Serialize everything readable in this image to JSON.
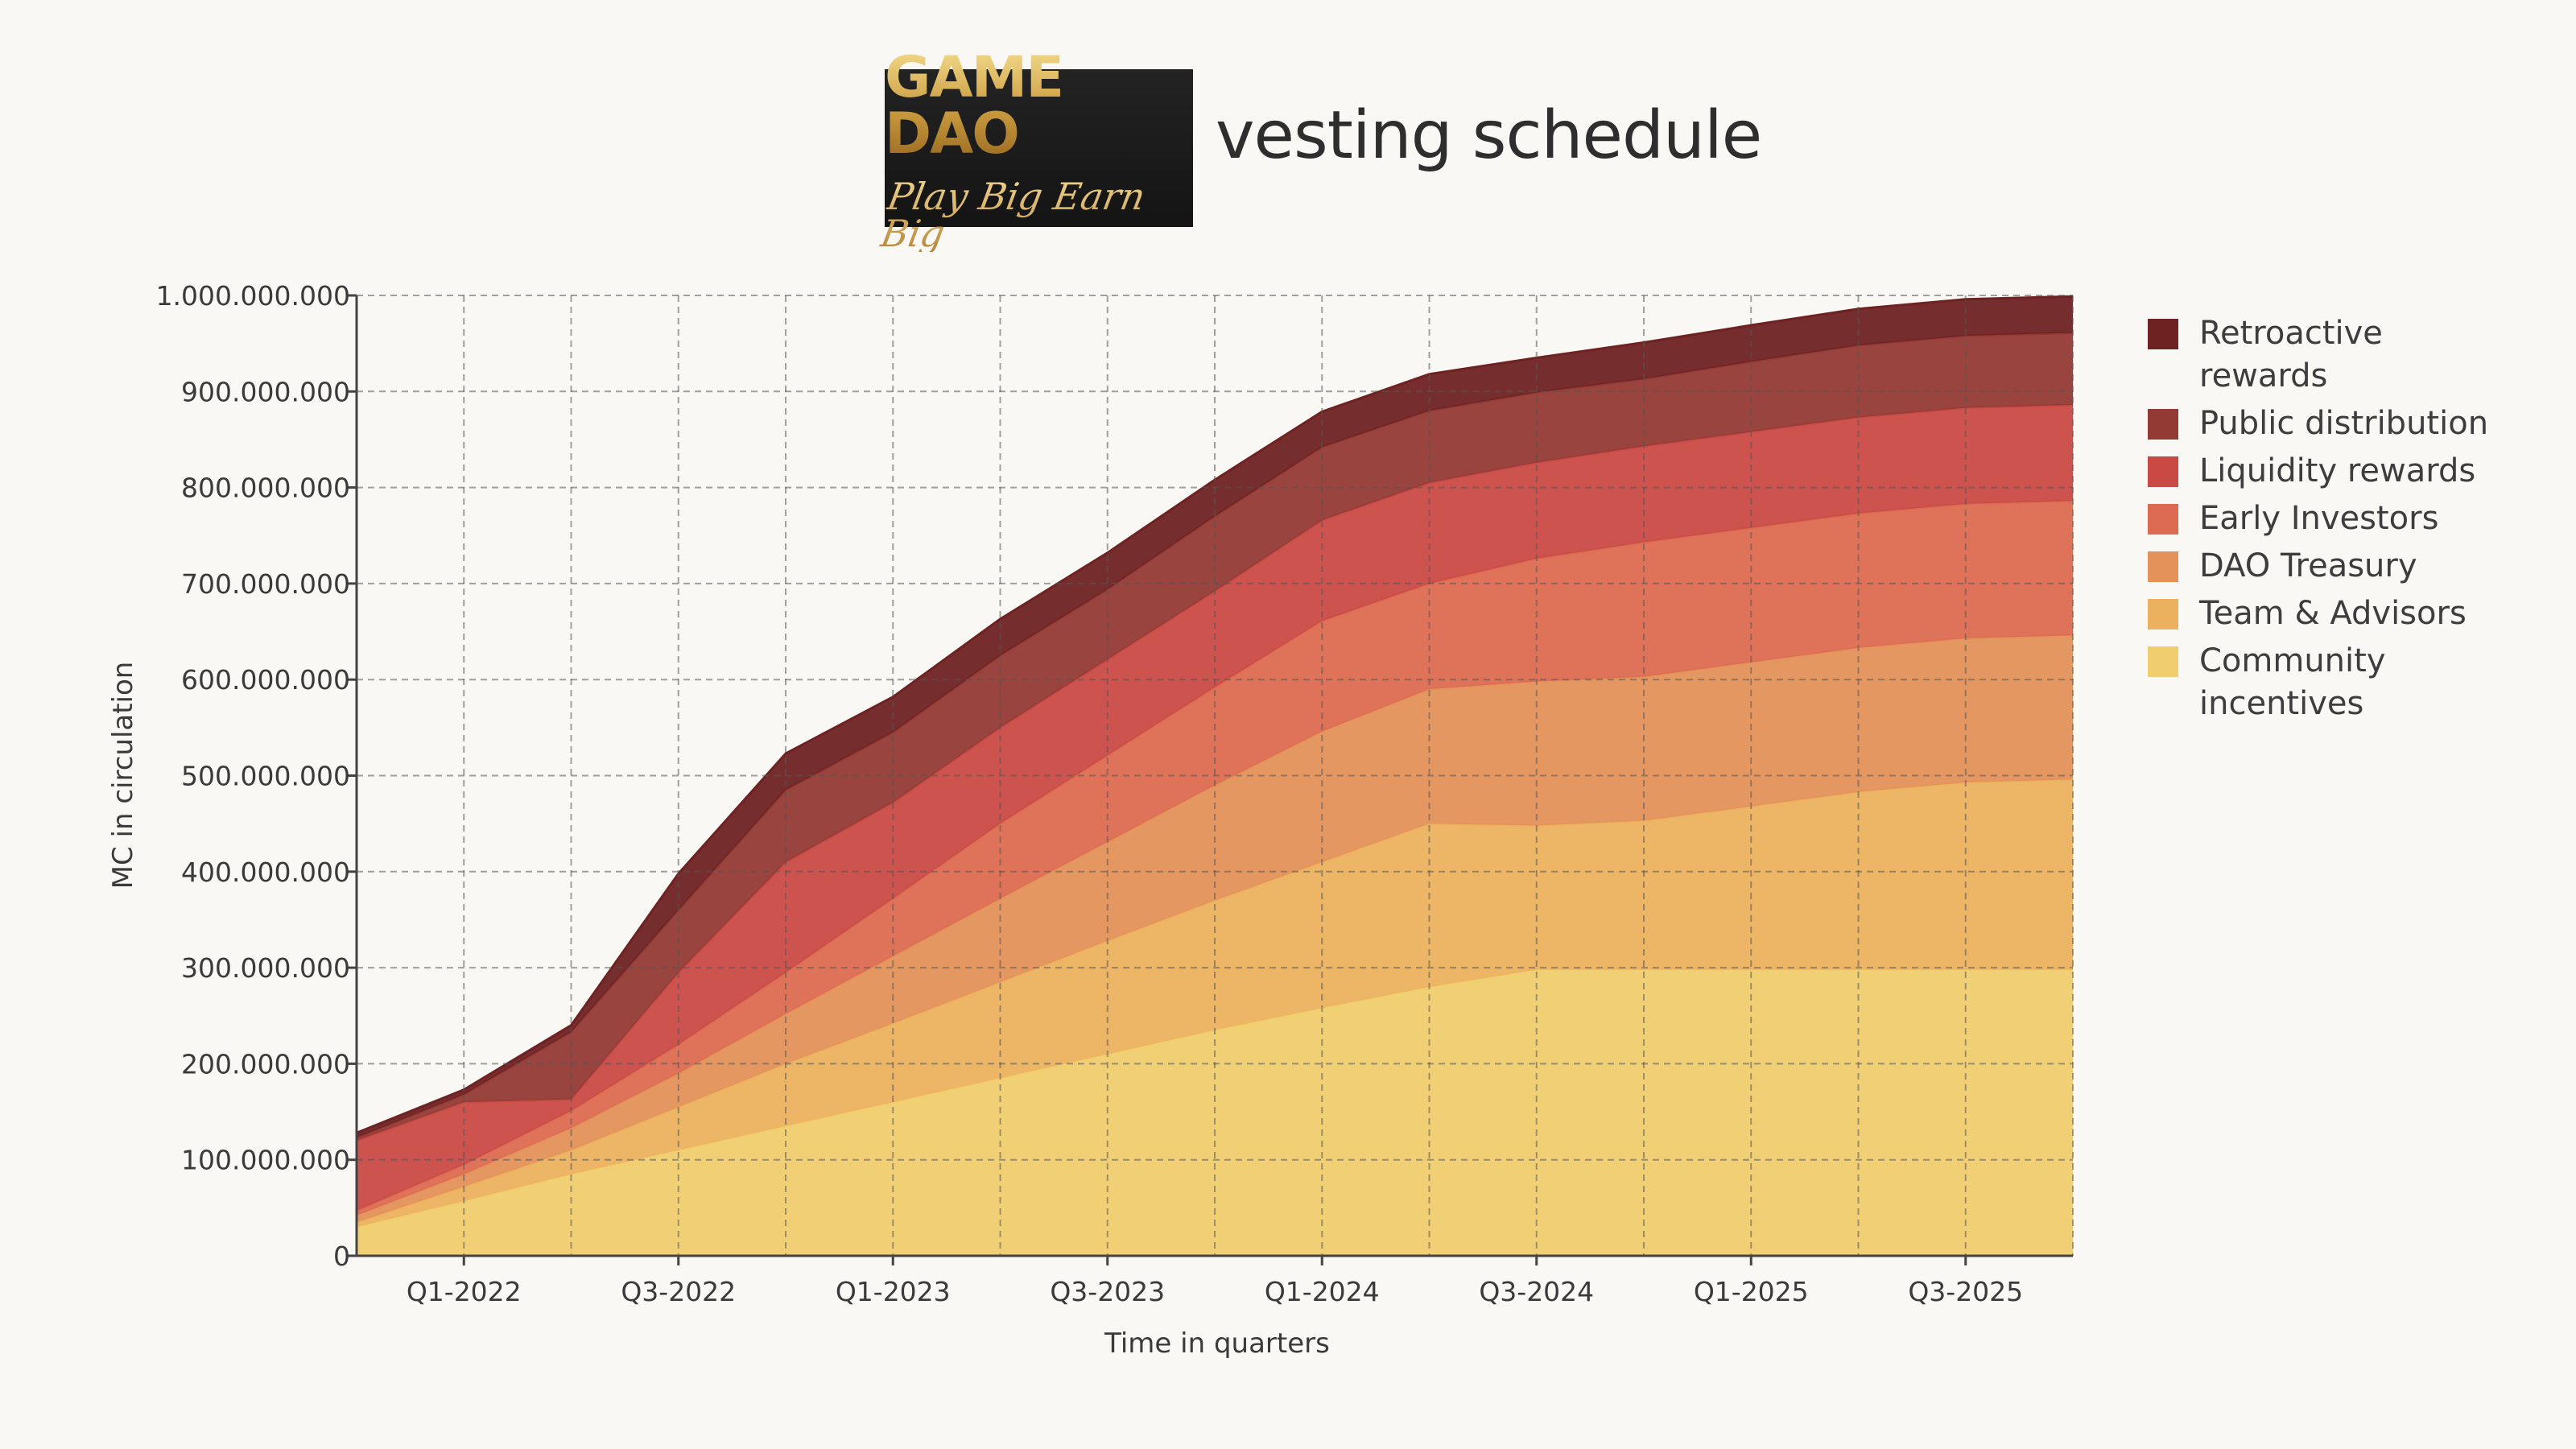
{
  "header": {
    "logo_text": "GAME DAO",
    "logo_tagline": "Play Big Earn Big",
    "title": "vesting schedule"
  },
  "chart_data": {
    "type": "area",
    "stacked": true,
    "title": "vesting schedule",
    "xlabel": "Time in quarters",
    "ylabel": "MC in circulation",
    "ylim": [
      0,
      1000000000
    ],
    "yticks": [
      "0",
      "100.000.000",
      "200.000.000",
      "300.000.000",
      "400.000.000",
      "500.000.000",
      "600.000.000",
      "700.000.000",
      "800.000.000",
      "900.000.000",
      "1.000.000.000"
    ],
    "x": [
      "Q4-2021",
      "Q1-2022",
      "Q2-2022",
      "Q3-2022",
      "Q4-2022",
      "Q1-2023",
      "Q2-2023",
      "Q3-2023",
      "Q4-2023",
      "Q1-2024",
      "Q2-2024",
      "Q3-2024",
      "Q4-2024",
      "Q1-2025",
      "Q2-2025",
      "Q3-2025",
      "Q4-2025"
    ],
    "xtick_labels": [
      "Q1-2022",
      "Q3-2022",
      "Q1-2023",
      "Q3-2023",
      "Q1-2024",
      "Q3-2024",
      "Q1-2025",
      "Q3-2025"
    ],
    "grid": true,
    "legend_position": "right",
    "series": [
      {
        "name": "Community incentives",
        "color": "#f0cd6e",
        "values": [
          30,
          57,
          85,
          110,
          135,
          160,
          185,
          210,
          235,
          258,
          280,
          298,
          298,
          298,
          298,
          298,
          298
        ]
      },
      {
        "name": "Team & Advisors",
        "color": "#ecb15e",
        "values": [
          5,
          15,
          25,
          45,
          65,
          82,
          100,
          118,
          135,
          152,
          170,
          150,
          155,
          170,
          185,
          195,
          198
        ]
      },
      {
        "name": "DAO Treasury",
        "color": "#e4915a",
        "values": [
          7,
          13,
          23,
          35,
          52,
          70,
          87,
          103,
          120,
          136,
          140,
          150,
          150,
          150,
          150,
          150,
          150
        ]
      },
      {
        "name": "Early Investors",
        "color": "#dc6b51",
        "values": [
          5,
          10,
          18,
          30,
          43,
          60,
          78,
          90,
          102,
          115,
          110,
          128,
          140,
          140,
          140,
          140,
          140
        ]
      },
      {
        "name": "Liquidity rewards",
        "color": "#c94a44",
        "values": [
          73,
          65,
          12,
          75,
          115,
          100,
          100,
          100,
          100,
          105,
          105,
          100,
          100,
          100,
          100,
          100,
          100
        ]
      },
      {
        "name": "Public distribution",
        "color": "#943a35",
        "values": [
          3,
          8,
          70,
          65,
          75,
          73,
          75,
          73,
          78,
          76,
          75,
          73,
          70,
          73,
          75,
          75,
          75
        ]
      },
      {
        "name": "Retroactive rewards",
        "color": "#6e2222",
        "values": [
          5,
          5,
          7,
          38,
          38,
          37,
          38,
          38,
          38,
          37,
          38,
          36,
          38,
          38,
          38,
          38,
          38
        ]
      }
    ]
  }
}
